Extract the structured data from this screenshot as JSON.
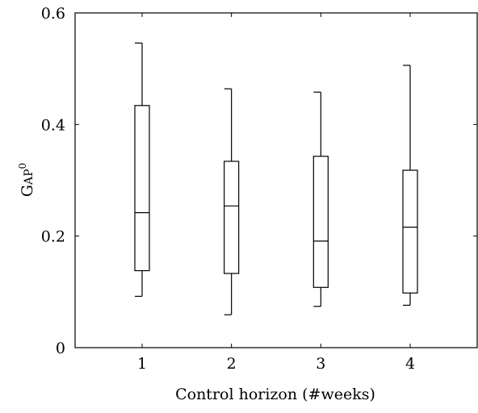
{
  "chart_data": {
    "type": "boxplot",
    "xlabel": "Control horizon (#weeks)",
    "ylabel_main": "G",
    "ylabel_smallcaps": "AP",
    "ylabel_superscript": "0",
    "categories": [
      "1",
      "2",
      "3",
      "4"
    ],
    "x_ticks": [
      1,
      2,
      3,
      4
    ],
    "xlim": [
      0.25,
      4.75
    ],
    "ylim": [
      0,
      0.6
    ],
    "y_ticks": [
      0,
      0.2,
      0.4,
      0.6
    ],
    "y_tick_labels": [
      "0",
      "0.2",
      "0.4",
      "0.6"
    ],
    "grid": false,
    "boxes": [
      {
        "category": "1",
        "whisker_low": 0.092,
        "q1": 0.138,
        "median": 0.242,
        "q3": 0.434,
        "whisker_high": 0.546
      },
      {
        "category": "2",
        "whisker_low": 0.059,
        "q1": 0.133,
        "median": 0.254,
        "q3": 0.334,
        "whisker_high": 0.464
      },
      {
        "category": "3",
        "whisker_low": 0.074,
        "q1": 0.108,
        "median": 0.191,
        "q3": 0.343,
        "whisker_high": 0.458
      },
      {
        "category": "4",
        "whisker_low": 0.076,
        "q1": 0.098,
        "median": 0.216,
        "q3": 0.318,
        "whisker_high": 0.506
      }
    ]
  }
}
